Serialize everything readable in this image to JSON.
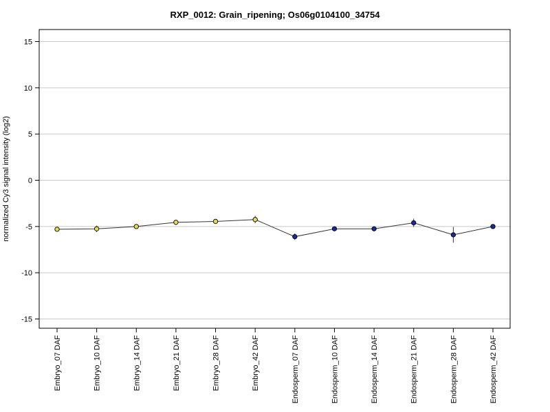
{
  "chart_data": {
    "type": "line",
    "title": "RXP_0012: Grain_ripening; Os06g0104100_34754",
    "xlabel": "",
    "ylabel": "normalized Cy3 signal intensity (log2)",
    "ylim": [
      -16,
      16.3
    ],
    "yticks": [
      -15,
      -10,
      -5,
      0,
      5,
      10,
      15
    ],
    "grid": true,
    "categories": [
      "Embryo_07 DAF",
      "Embryo_10 DAF",
      "Embryo_14 DAF",
      "Embryo_21 DAF",
      "Embryo_28 DAF",
      "Embryo_42 DAF",
      "Endosperm_07 DAF",
      "Endosperm_10 DAF",
      "Endosperm_14 DAF",
      "Endosperm_21 DAF",
      "Endosperm_28 DAF",
      "Endosperm_42 DAF"
    ],
    "values": [
      -5.3,
      -5.25,
      -5.0,
      -4.55,
      -4.45,
      -4.25,
      -6.1,
      -5.25,
      -5.25,
      -4.6,
      -5.9,
      -5.0
    ],
    "error": [
      0.15,
      0.35,
      0.2,
      0.25,
      0.2,
      0.4,
      0.35,
      0.2,
      0.25,
      0.45,
      0.85,
      0.15
    ],
    "point_colors": [
      "#e6dc4a",
      "#e6dc4a",
      "#e6dc4a",
      "#e6dc4a",
      "#e6dc4a",
      "#e6dc4a",
      "#1a2a9c",
      "#1a2a9c",
      "#1a2a9c",
      "#1a2a9c",
      "#1a2a9c",
      "#1a2a9c"
    ],
    "line_color": "#333333",
    "grid_color": "#c8c8c8"
  }
}
